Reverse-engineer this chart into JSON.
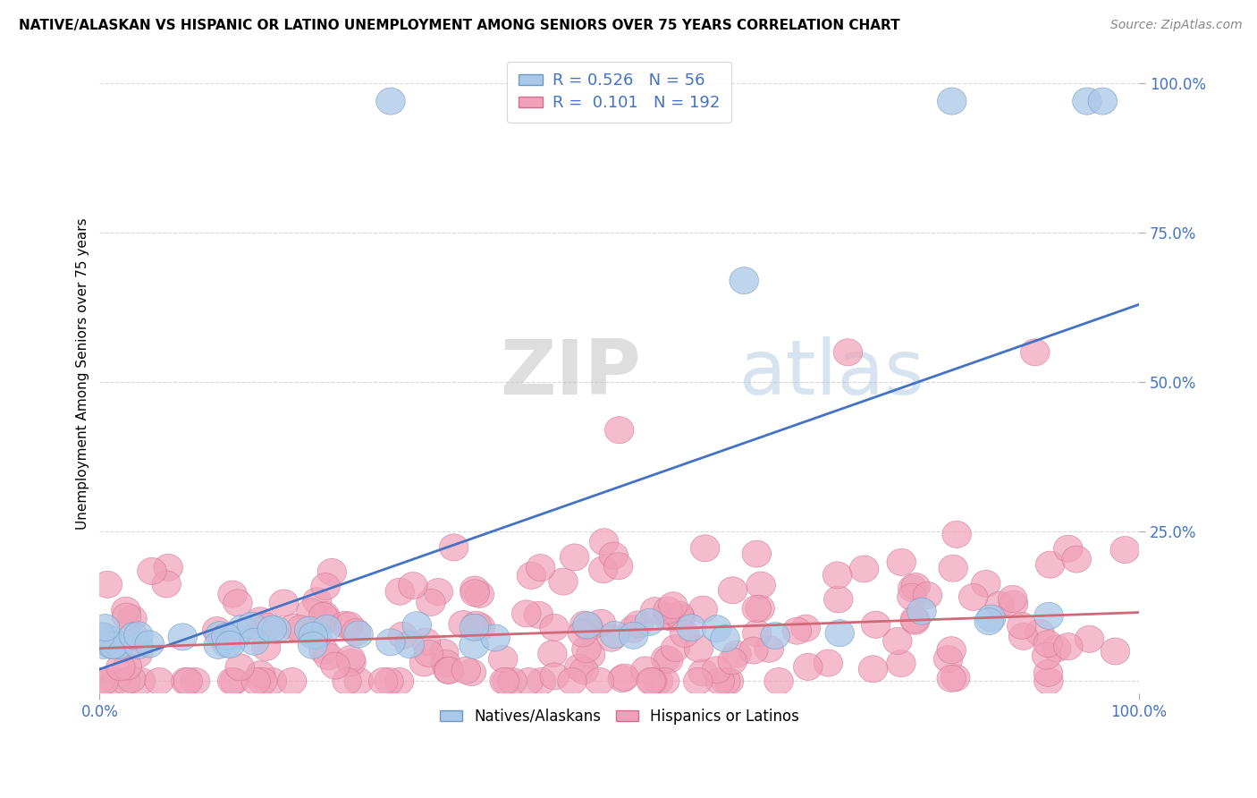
{
  "title": "NATIVE/ALASKAN VS HISPANIC OR LATINO UNEMPLOYMENT AMONG SENIORS OVER 75 YEARS CORRELATION CHART",
  "source": "Source: ZipAtlas.com",
  "ylabel": "Unemployment Among Seniors over 75 years",
  "xlim": [
    0,
    1
  ],
  "ylim": [
    -0.02,
    1.05
  ],
  "blue_fill": "#aac8e8",
  "blue_edge": "#7099c0",
  "pink_fill": "#f0a0b8",
  "pink_edge": "#d07090",
  "blue_line_color": "#4472c4",
  "pink_line_color": "#d06878",
  "R_blue": 0.526,
  "N_blue": 56,
  "R_pink": 0.101,
  "N_pink": 192,
  "tick_color": "#4472c4",
  "background_color": "#ffffff",
  "grid_color": "#d8d8d8",
  "watermark_ZIP": "ZIP",
  "watermark_atlas": "atlas",
  "legend_label_blue": "Natives/Alaskans",
  "legend_label_pink": "Hispanics or Latinos",
  "blue_trend": [
    0.02,
    0.63
  ],
  "pink_trend": [
    0.055,
    0.115
  ]
}
